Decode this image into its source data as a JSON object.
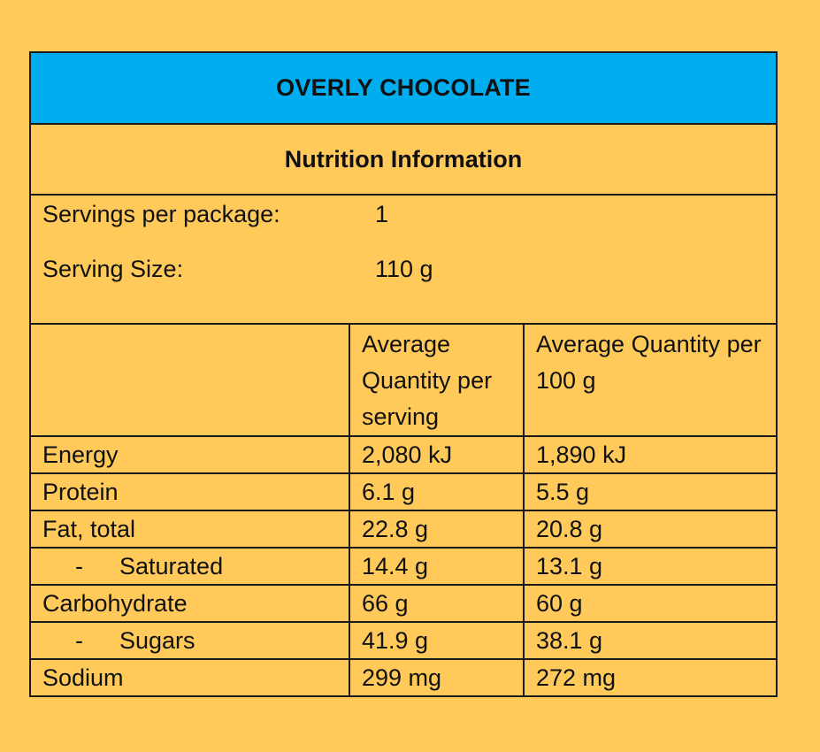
{
  "product_name": "OVERLY CHOCOLATE",
  "panel_title": "Nutrition Information",
  "servings": {
    "per_package_label": "Servings per package:",
    "per_package_value": "1",
    "size_label": "Serving Size:",
    "size_value": "110 g"
  },
  "columns": {
    "per_serving": "Average Quantity per serving",
    "per_100g": "Average Quantity per 100 g"
  },
  "rows": [
    {
      "nutrient": "Energy",
      "per_serving": "2,080 kJ",
      "per_100g": "1,890 kJ"
    },
    {
      "nutrient": "Protein",
      "per_serving": "6.1 g",
      "per_100g": "5.5 g"
    },
    {
      "nutrient": "Fat, total",
      "per_serving": "22.8 g",
      "per_100g": "20.8 g"
    },
    {
      "nutrient": "Saturated",
      "sub_marker": "-",
      "per_serving": "14.4 g",
      "per_100g": "13.1 g"
    },
    {
      "nutrient": "Carbohydrate",
      "per_serving": "66 g",
      "per_100g": "60 g"
    },
    {
      "nutrient": "Sugars",
      "sub_marker": "-",
      "per_serving": "41.9 g",
      "per_100g": "38.1 g"
    },
    {
      "nutrient": "Sodium",
      "per_serving": "299 mg",
      "per_100g": "272 mg"
    }
  ],
  "colors": {
    "background": "#FFCA5A",
    "title_bar": "#00ADEF",
    "border": "#1a1a1a"
  }
}
